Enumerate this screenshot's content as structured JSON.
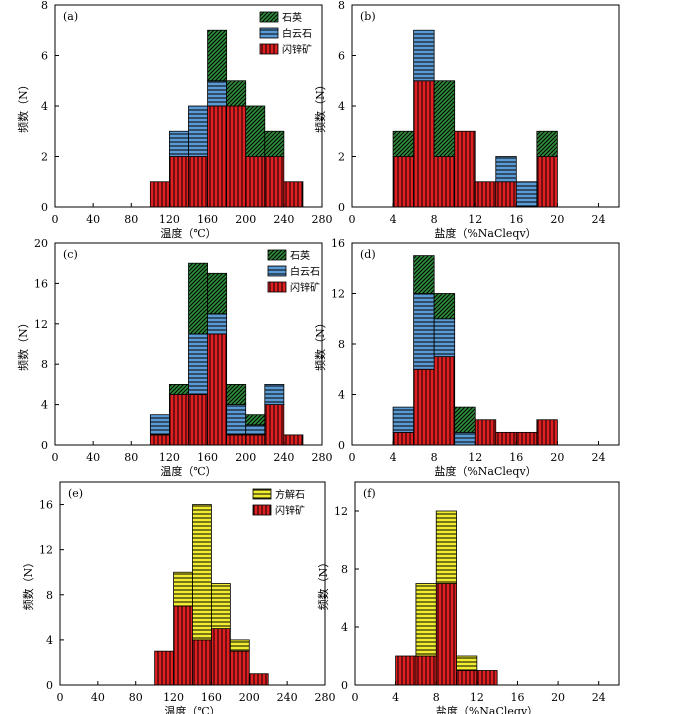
{
  "colors": {
    "quartz": "#2e8b3a",
    "dolomite": "#5b9bd5",
    "sphalerite": "#e02020",
    "calcite": "#f0ec30",
    "hatch": "#000000"
  },
  "legend_labels": {
    "quartz": "石英",
    "dolomite": "白云石",
    "sphalerite": "闪锌矿",
    "calcite": "方解石"
  },
  "chart_data": [
    {
      "type": "bar",
      "stacked": true,
      "panel_label": "(a)",
      "xlabel": "温度（℃）",
      "ylabel": "频数（N）",
      "xlim": [
        0,
        280
      ],
      "ylim": [
        0,
        8
      ],
      "xticks": [
        0,
        40,
        80,
        120,
        160,
        200,
        240,
        280
      ],
      "yticks": [
        0,
        2,
        4,
        6,
        8
      ],
      "bin_width": 20,
      "bins": [
        100,
        120,
        140,
        160,
        180,
        200,
        220,
        240
      ],
      "series": [
        {
          "name": "闪锌矿",
          "key": "sphalerite",
          "values": [
            1,
            2,
            2,
            4,
            4,
            2,
            2,
            1
          ]
        },
        {
          "name": "白云石",
          "key": "dolomite",
          "values": [
            0,
            1,
            2,
            1,
            0,
            0,
            0,
            0
          ]
        },
        {
          "name": "石英",
          "key": "quartz",
          "values": [
            0,
            0,
            0,
            2,
            1,
            2,
            1,
            0
          ]
        }
      ],
      "legend": [
        "quartz",
        "dolomite",
        "sphalerite"
      ]
    },
    {
      "type": "bar",
      "stacked": true,
      "panel_label": "(b)",
      "xlabel": "盐度（%NaCleqv）",
      "ylabel": "频数（N）",
      "xlim": [
        0,
        26
      ],
      "ylim": [
        0,
        8
      ],
      "xticks": [
        0,
        4,
        8,
        12,
        16,
        20,
        24
      ],
      "yticks": [
        0,
        2,
        4,
        6,
        8
      ],
      "bin_width": 2,
      "bins": [
        4,
        6,
        8,
        10,
        12,
        14,
        16,
        18
      ],
      "series": [
        {
          "name": "闪锌矿",
          "key": "sphalerite",
          "values": [
            2,
            5,
            2,
            3,
            1,
            1,
            0,
            2
          ]
        },
        {
          "name": "白云石",
          "key": "dolomite",
          "values": [
            0,
            2,
            0,
            0,
            0,
            1,
            1,
            0
          ]
        },
        {
          "name": "石英",
          "key": "quartz",
          "values": [
            1,
            0,
            3,
            0,
            0,
            0,
            0,
            1
          ]
        }
      ],
      "legend": []
    },
    {
      "type": "bar",
      "stacked": true,
      "panel_label": "(c)",
      "xlabel": "温度（℃）",
      "ylabel": "频数（N）",
      "xlim": [
        0,
        280
      ],
      "ylim": [
        0,
        20
      ],
      "xticks": [
        0,
        40,
        80,
        120,
        160,
        200,
        240,
        280
      ],
      "yticks": [
        0,
        4,
        8,
        12,
        16,
        20
      ],
      "bin_width": 20,
      "bins": [
        100,
        120,
        140,
        160,
        180,
        200,
        220,
        240
      ],
      "series": [
        {
          "name": "闪锌矿",
          "key": "sphalerite",
          "values": [
            1,
            5,
            5,
            11,
            1,
            1,
            4,
            1
          ]
        },
        {
          "name": "白云石",
          "key": "dolomite",
          "values": [
            2,
            0,
            6,
            2,
            3,
            1,
            2,
            0
          ]
        },
        {
          "name": "石英",
          "key": "quartz",
          "values": [
            0,
            1,
            7,
            4,
            2,
            1,
            0,
            0
          ]
        }
      ],
      "legend": [
        "quartz",
        "dolomite",
        "sphalerite"
      ]
    },
    {
      "type": "bar",
      "stacked": true,
      "panel_label": "(d)",
      "xlabel": "盐度（%NaCleqv）",
      "ylabel": "频数（N）",
      "xlim": [
        0,
        26
      ],
      "ylim": [
        0,
        16
      ],
      "xticks": [
        0,
        4,
        8,
        12,
        16,
        20,
        24
      ],
      "yticks": [
        0,
        4,
        8,
        12,
        16
      ],
      "bin_width": 2,
      "bins": [
        4,
        6,
        8,
        10,
        12,
        14,
        16,
        18
      ],
      "series": [
        {
          "name": "闪锌矿",
          "key": "sphalerite",
          "values": [
            1,
            6,
            7,
            0,
            2,
            1,
            1,
            2
          ]
        },
        {
          "name": "白云石",
          "key": "dolomite",
          "values": [
            2,
            6,
            3,
            1,
            0,
            0,
            0,
            0
          ]
        },
        {
          "name": "石英",
          "key": "quartz",
          "values": [
            0,
            3,
            2,
            2,
            0,
            0,
            0,
            0
          ]
        }
      ],
      "legend": []
    },
    {
      "type": "bar",
      "stacked": true,
      "panel_label": "(e)",
      "xlabel": "温度（℃）",
      "ylabel": "频数（N）",
      "xlim": [
        0,
        280
      ],
      "ylim": [
        0,
        18
      ],
      "xticks": [
        0,
        40,
        80,
        120,
        160,
        200,
        240,
        280
      ],
      "yticks": [
        0,
        4,
        8,
        12,
        16
      ],
      "bin_width": 20,
      "bins": [
        100,
        120,
        140,
        160,
        180,
        200
      ],
      "series": [
        {
          "name": "闪锌矿",
          "key": "sphalerite",
          "values": [
            3,
            7,
            4,
            5,
            3,
            1
          ]
        },
        {
          "name": "方解石",
          "key": "calcite",
          "values": [
            0,
            3,
            12,
            4,
            1,
            0
          ]
        }
      ],
      "legend": [
        "calcite",
        "sphalerite"
      ]
    },
    {
      "type": "bar",
      "stacked": true,
      "panel_label": "(f)",
      "xlabel": "盐度（%NaCleqv）",
      "ylabel": "频数（N）",
      "xlim": [
        0,
        26
      ],
      "ylim": [
        0,
        14
      ],
      "xticks": [
        0,
        4,
        8,
        12,
        16,
        20,
        24
      ],
      "yticks": [
        0,
        4,
        8,
        12
      ],
      "bin_width": 2,
      "bins": [
        4,
        6,
        8,
        10,
        12
      ],
      "series": [
        {
          "name": "闪锌矿",
          "key": "sphalerite",
          "values": [
            2,
            2,
            7,
            1,
            1
          ]
        },
        {
          "name": "方解石",
          "key": "calcite",
          "values": [
            0,
            5,
            5,
            1,
            0
          ]
        }
      ],
      "legend": []
    }
  ]
}
